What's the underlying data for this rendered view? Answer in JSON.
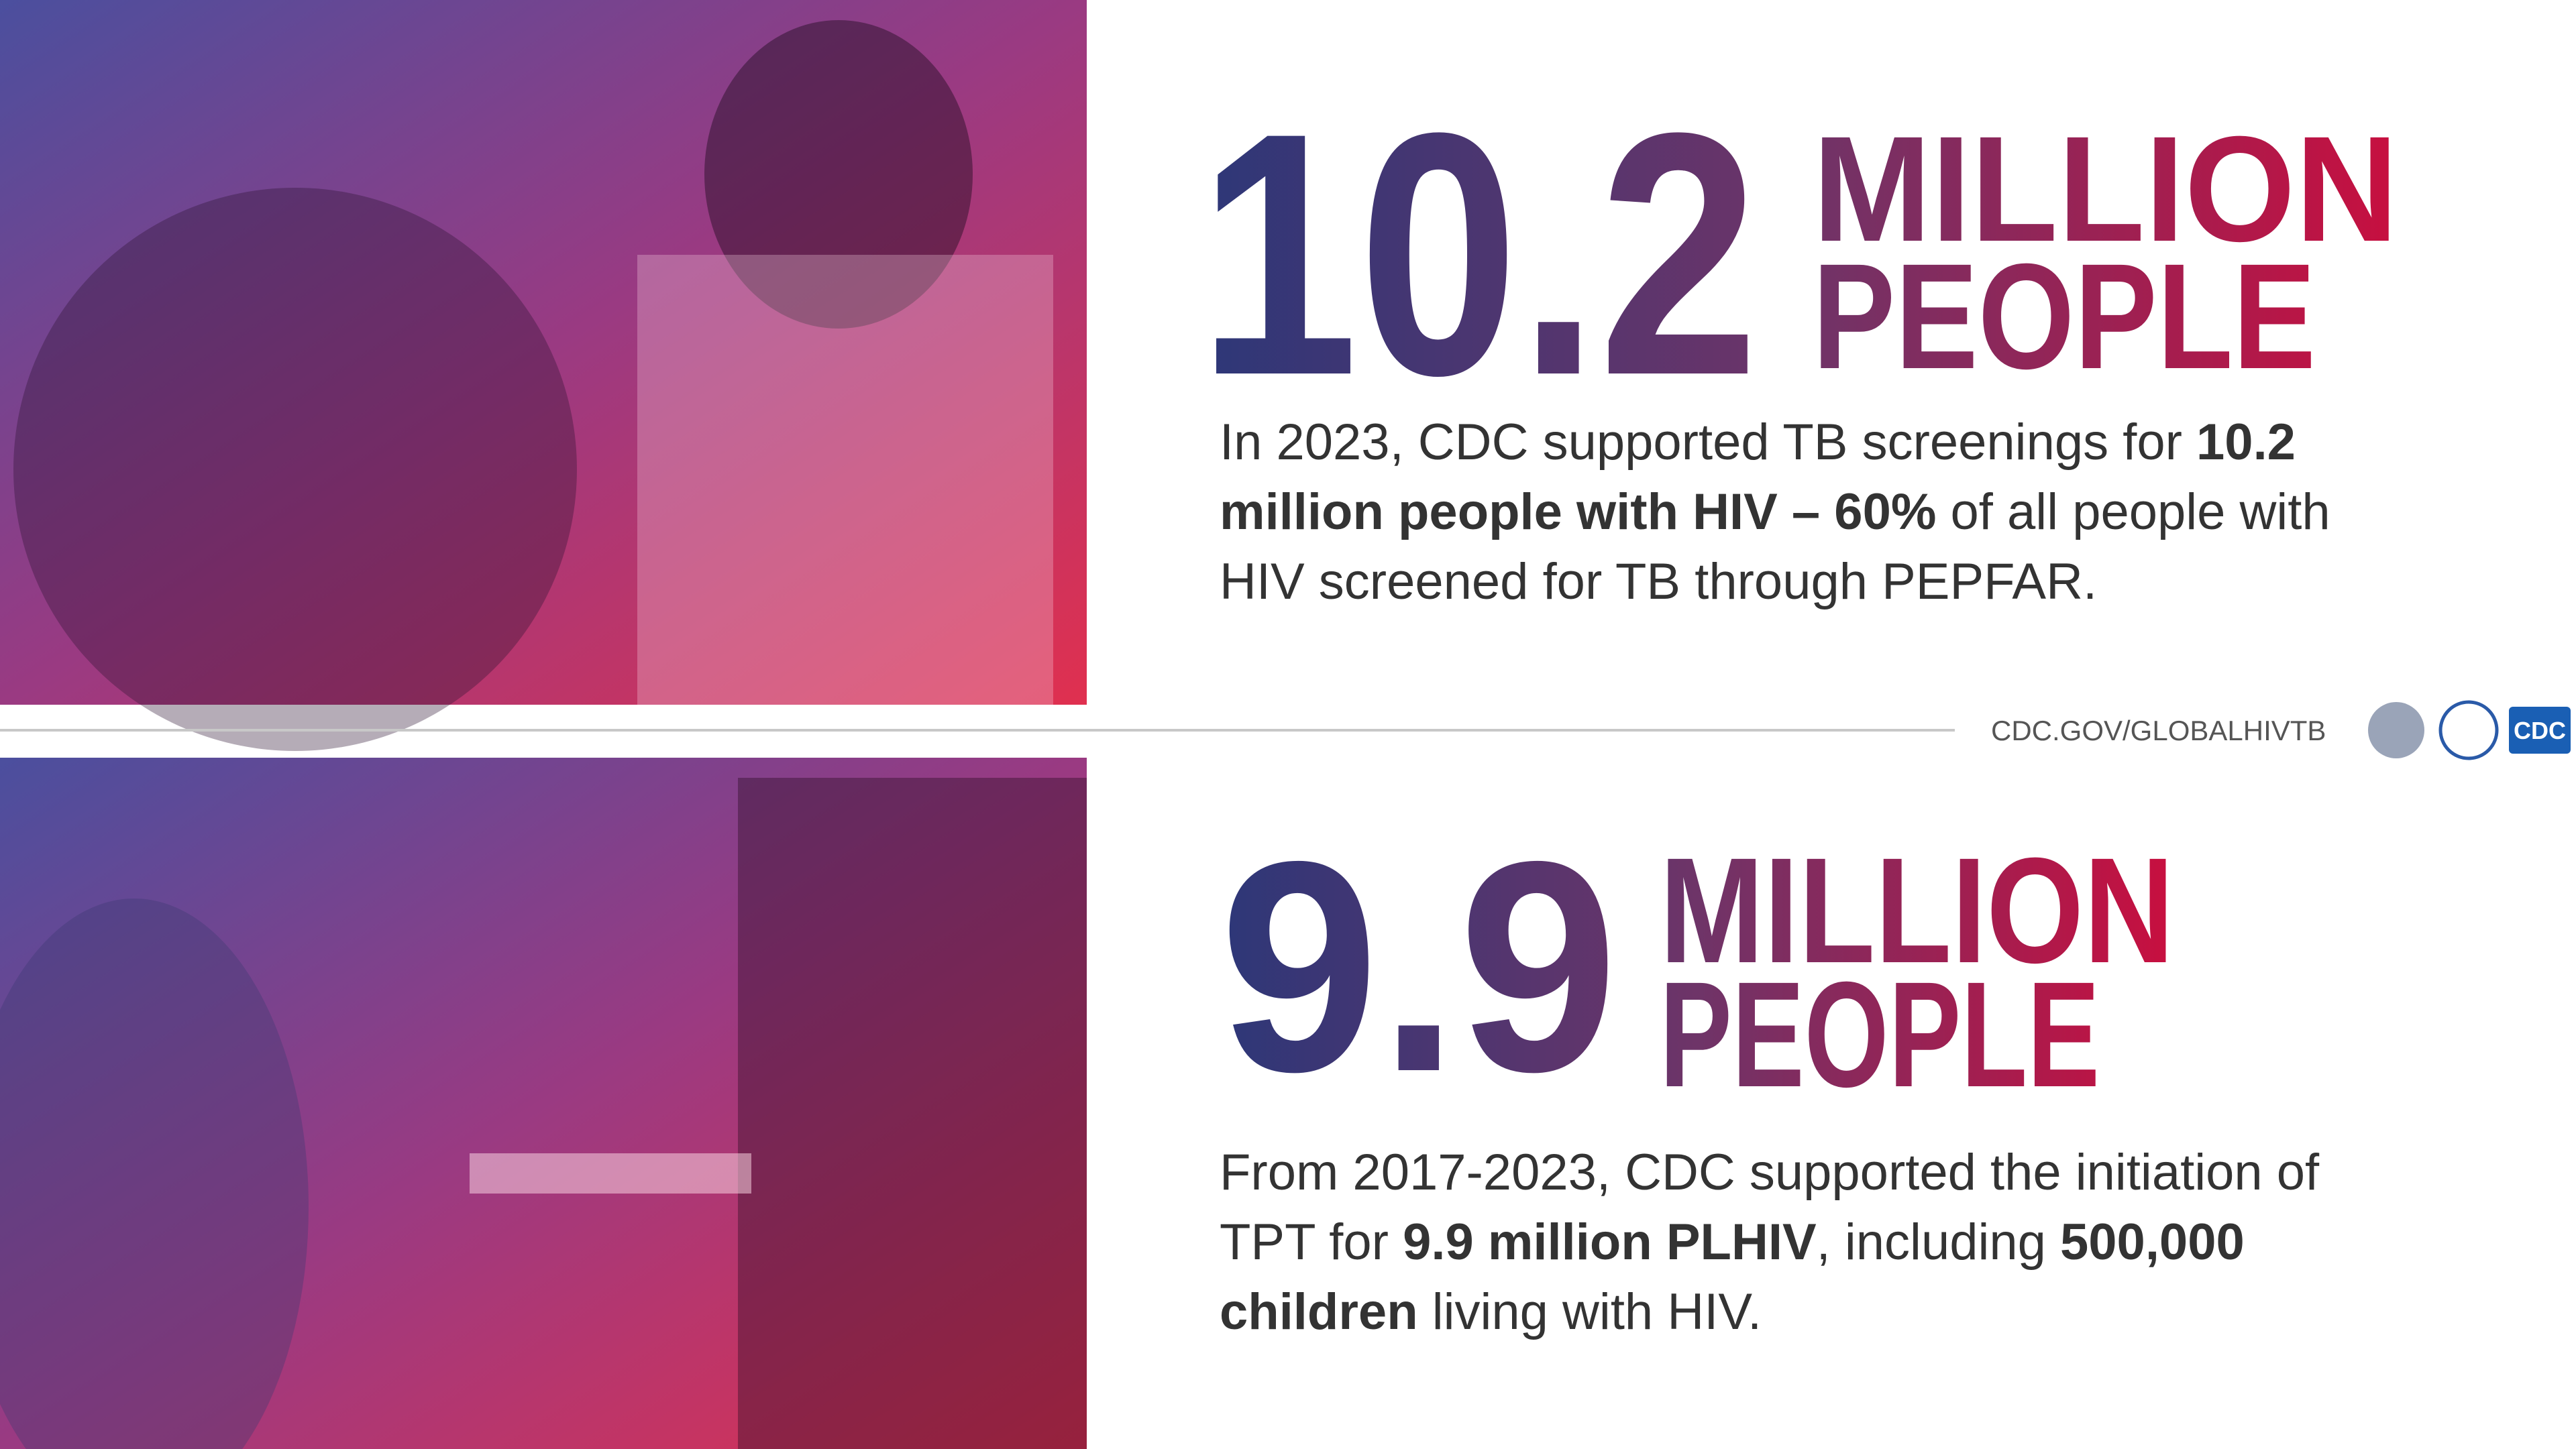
{
  "stats": [
    {
      "number": "10.2",
      "unit_line1": "MILLION",
      "unit_line2": "PEOPLE",
      "description": [
        [
          {
            "text": "In 2023, CDC supported TB screenings for ",
            "bold": false
          },
          {
            "text": "10.2",
            "bold": true
          }
        ],
        [
          {
            "text": "million people with HIV – 60%",
            "bold": true
          },
          {
            "text": " of all people with",
            "bold": false
          }
        ],
        [
          {
            "text": "HIV screened for TB through PEPFAR.",
            "bold": false
          }
        ]
      ]
    },
    {
      "number": "9.9",
      "unit_line1": "MILLION",
      "unit_line2": "PEOPLE",
      "description": [
        [
          {
            "text": "From 2017-2023, CDC supported the initiation of",
            "bold": false
          }
        ],
        [
          {
            "text": "TPT for ",
            "bold": false
          },
          {
            "text": "9.9 million PLHIV",
            "bold": true
          },
          {
            "text": ", including ",
            "bold": false
          },
          {
            "text": "500,000",
            "bold": true
          }
        ],
        [
          {
            "text": "children",
            "bold": true
          },
          {
            "text": " living with HIV.",
            "bold": false
          }
        ]
      ]
    }
  ],
  "footer": {
    "url": "CDC.GOV/GLOBALHIVTB",
    "logo_text": "CDC"
  }
}
